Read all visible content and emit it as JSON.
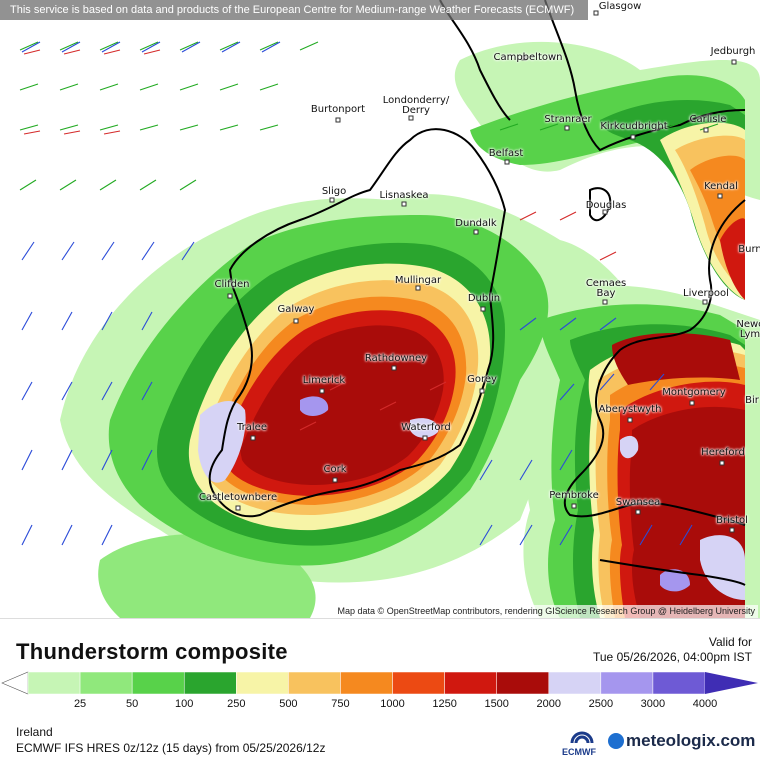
{
  "banner": "This service is based on data and products of the European Centre for Medium-range Weather Forecasts (ECMWF)",
  "attribution": "Map data © OpenStreetMap contributors, rendering GIScience Research Group @ Heidelberg University",
  "title": "Thunderstorm composite",
  "valid_label": "Valid for",
  "valid_time": "Tue 05/26/2026, 04:00pm IST",
  "region": "Ireland",
  "model": "ECMWF IFS HRES 0z/12z (15 days) from 05/25/2026/12z",
  "ecmwf_logo_text": "ECMWF",
  "brand": "meteologix.com",
  "legend": {
    "ticks": [
      "25",
      "50",
      "100",
      "250",
      "500",
      "750",
      "1000",
      "1250",
      "1500",
      "2000",
      "2500",
      "3000",
      "4000"
    ],
    "colors": [
      "#ffffff",
      "#c6f5b5",
      "#90e87c",
      "#58d24a",
      "#2aa52e",
      "#f7f4a7",
      "#f8c25e",
      "#f5891f",
      "#ec4a13",
      "#d0180f",
      "#a90c0a",
      "#d6d3f5",
      "#a596ee",
      "#6e5ad5",
      "#3f2db4"
    ]
  },
  "cities": [
    {
      "name": "Glasgow"
    },
    {
      "name": "Campbeltown"
    },
    {
      "name": "Jedburgh"
    },
    {
      "name": "Burtonport"
    },
    {
      "name": "Londonderry/\nDerry"
    },
    {
      "name": "Stranraer"
    },
    {
      "name": "Kirkcudbright"
    },
    {
      "name": "Carlisle"
    },
    {
      "name": "Belfast"
    },
    {
      "name": "Sligo"
    },
    {
      "name": "Lisnaskea"
    },
    {
      "name": "Douglas"
    },
    {
      "name": "Kendal"
    },
    {
      "name": "Dundalk"
    },
    {
      "name": "Burn"
    },
    {
      "name": "Clifden"
    },
    {
      "name": "Mullingar"
    },
    {
      "name": "Cemaes\nBay"
    },
    {
      "name": "Liverpool"
    },
    {
      "name": "Dublin"
    },
    {
      "name": "Galway"
    },
    {
      "name": "Newc\nLym"
    },
    {
      "name": "Rathdowney"
    },
    {
      "name": "Limerick"
    },
    {
      "name": "Gorey"
    },
    {
      "name": "Montgomery"
    },
    {
      "name": "Aberystwyth"
    },
    {
      "name": "Bir"
    },
    {
      "name": "Tralee"
    },
    {
      "name": "Waterford"
    },
    {
      "name": "Hereford"
    },
    {
      "name": "Cork"
    },
    {
      "name": "Castletownbere"
    },
    {
      "name": "Pembroke"
    },
    {
      "name": "Swansea"
    },
    {
      "name": "Bristol"
    }
  ]
}
